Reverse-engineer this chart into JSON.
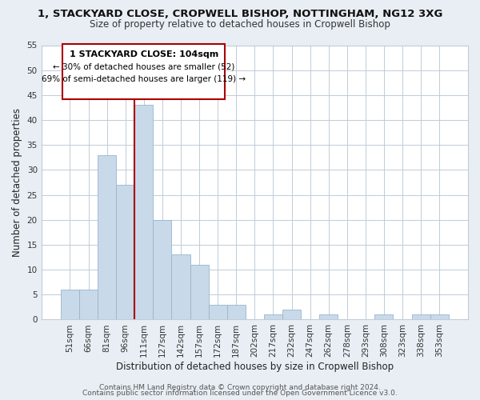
{
  "title": "1, STACKYARD CLOSE, CROPWELL BISHOP, NOTTINGHAM, NG12 3XG",
  "subtitle": "Size of property relative to detached houses in Cropwell Bishop",
  "xlabel": "Distribution of detached houses by size in Cropwell Bishop",
  "ylabel": "Number of detached properties",
  "bar_labels": [
    "51sqm",
    "66sqm",
    "81sqm",
    "96sqm",
    "111sqm",
    "127sqm",
    "142sqm",
    "157sqm",
    "172sqm",
    "187sqm",
    "202sqm",
    "217sqm",
    "232sqm",
    "247sqm",
    "262sqm",
    "278sqm",
    "293sqm",
    "308sqm",
    "323sqm",
    "338sqm",
    "353sqm"
  ],
  "bar_values": [
    6,
    6,
    33,
    27,
    43,
    20,
    13,
    11,
    3,
    3,
    0,
    1,
    2,
    0,
    1,
    0,
    0,
    1,
    0,
    1,
    1
  ],
  "bar_color": "#c8d9ea",
  "bar_edge_color": "#9ab5cc",
  "highlight_bar_index": 4,
  "highlight_color": "#aa0000",
  "ylim": [
    0,
    55
  ],
  "yticks": [
    0,
    5,
    10,
    15,
    20,
    25,
    30,
    35,
    40,
    45,
    50,
    55
  ],
  "annotation_title": "1 STACKYARD CLOSE: 104sqm",
  "annotation_line1": "← 30% of detached houses are smaller (52)",
  "annotation_line2": "69% of semi-detached houses are larger (119) →",
  "annotation_box_facecolor": "#ffffff",
  "annotation_box_edgecolor": "#aa0000",
  "footer_line1": "Contains HM Land Registry data © Crown copyright and database right 2024.",
  "footer_line2": "Contains public sector information licensed under the Open Government Licence v3.0.",
  "fig_bg_color": "#e8eef4",
  "plot_bg_color": "#ffffff",
  "grid_color": "#c0ccd8",
  "title_fontsize": 9.5,
  "subtitle_fontsize": 8.5,
  "axis_label_fontsize": 8.5,
  "tick_fontsize": 7.5,
  "annotation_fontsize": 8.0,
  "footer_fontsize": 6.5
}
